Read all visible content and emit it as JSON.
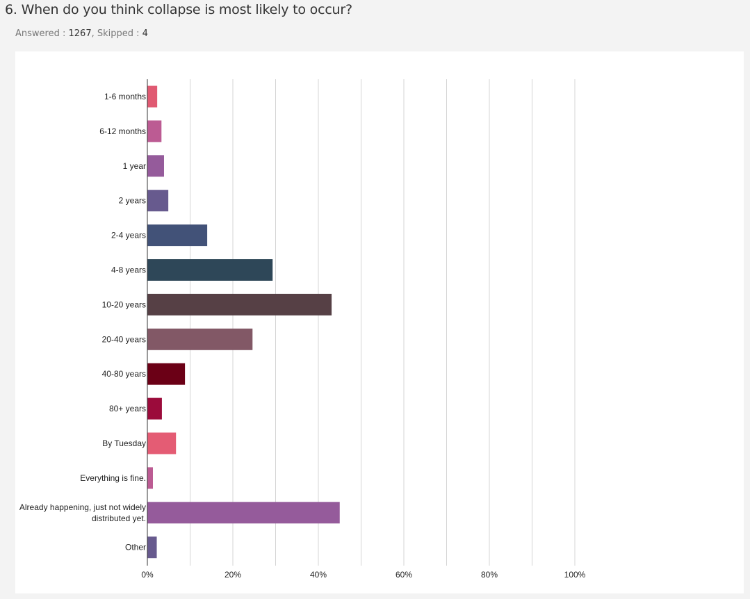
{
  "question": {
    "title": "6. When do you think collapse is most likely to occur?",
    "answered_label": "Answered :",
    "answered_count": "1267",
    "skipped_label": ", Skipped :",
    "skipped_count": "4"
  },
  "chart_data": {
    "type": "bar",
    "orientation": "horizontal",
    "title": "",
    "xlabel": "",
    "ylabel": "",
    "xlim": [
      0,
      100
    ],
    "x_ticks": [
      0,
      20,
      40,
      60,
      80,
      100
    ],
    "tick_labels": [
      "0%",
      "20%",
      "40%",
      "60%",
      "80%",
      "100%"
    ],
    "grid": true,
    "categories": [
      "1-6 months",
      "6-12 months",
      "1 year",
      "2 years",
      "2-4 years",
      "4-8 years",
      "10-20 years",
      "20-40 years",
      "40-80 years",
      "80+ years",
      "By Tuesday",
      "Everything is fine.",
      "Already happening, just not widely distributed yet.",
      "Other"
    ],
    "values": [
      2.3,
      3.3,
      3.9,
      4.9,
      14.0,
      29.3,
      43.1,
      24.6,
      8.8,
      3.4,
      6.7,
      1.3,
      45.0,
      2.2
    ],
    "colors": [
      "#e05a72",
      "#bc5b93",
      "#955b9b",
      "#675a8e",
      "#425278",
      "#2e4758",
      "#564045",
      "#825866",
      "#6b0016",
      "#9b0b3b",
      "#e45c74",
      "#bc5b93",
      "#955b9b",
      "#675a8e"
    ]
  }
}
